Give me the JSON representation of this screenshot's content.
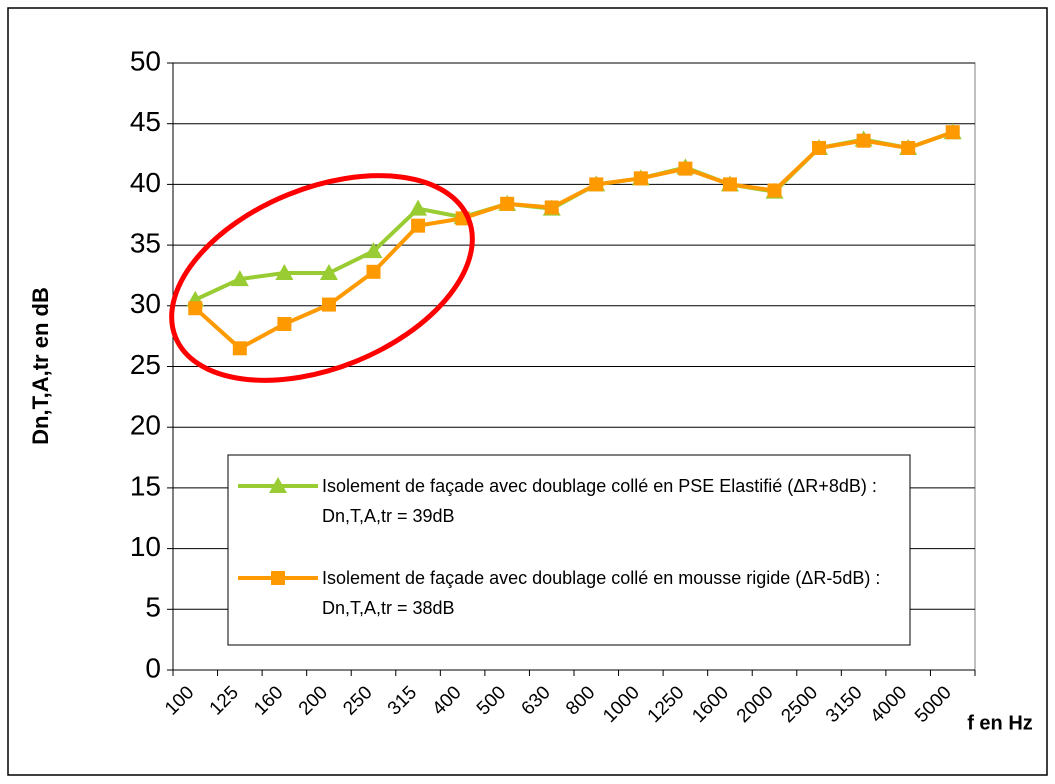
{
  "chart_data": {
    "type": "line",
    "y_label": "Dn,T,A,tr en dB",
    "x_label": "f en Hz",
    "categories": [
      "100",
      "125",
      "160",
      "200",
      "250",
      "315",
      "400",
      "500",
      "630",
      "800",
      "1000",
      "1250",
      "1600",
      "2000",
      "2500",
      "3150",
      "4000",
      "5000"
    ],
    "series": [
      {
        "name": "Isolement de façade avec doublage collé en PSE Elastifié (ΔR+8dB) : Dn,T,A,tr = 39dB",
        "color": "#99cc33",
        "marker": "triangle",
        "values": [
          30.5,
          32.2,
          32.7,
          32.7,
          34.5,
          38,
          37.3,
          38.4,
          38,
          40,
          40.5,
          41.4,
          40,
          39.4,
          43,
          43.7,
          43,
          44.3
        ]
      },
      {
        "name": "Isolement de façade avec doublage collé en mousse rigide (ΔR-5dB) : Dn,T,A,tr = 38dB",
        "color": "#ff9900",
        "marker": "square",
        "values": [
          29.8,
          26.5,
          28.5,
          30.1,
          32.8,
          36.6,
          37.2,
          38.4,
          38.1,
          40,
          40.5,
          41.3,
          40,
          39.5,
          43,
          43.6,
          43,
          44.3
        ]
      }
    ],
    "ylim": [
      0,
      50
    ],
    "yticks": [
      0,
      5,
      10,
      15,
      20,
      25,
      30,
      35,
      40,
      45,
      50
    ],
    "grid": true
  }
}
